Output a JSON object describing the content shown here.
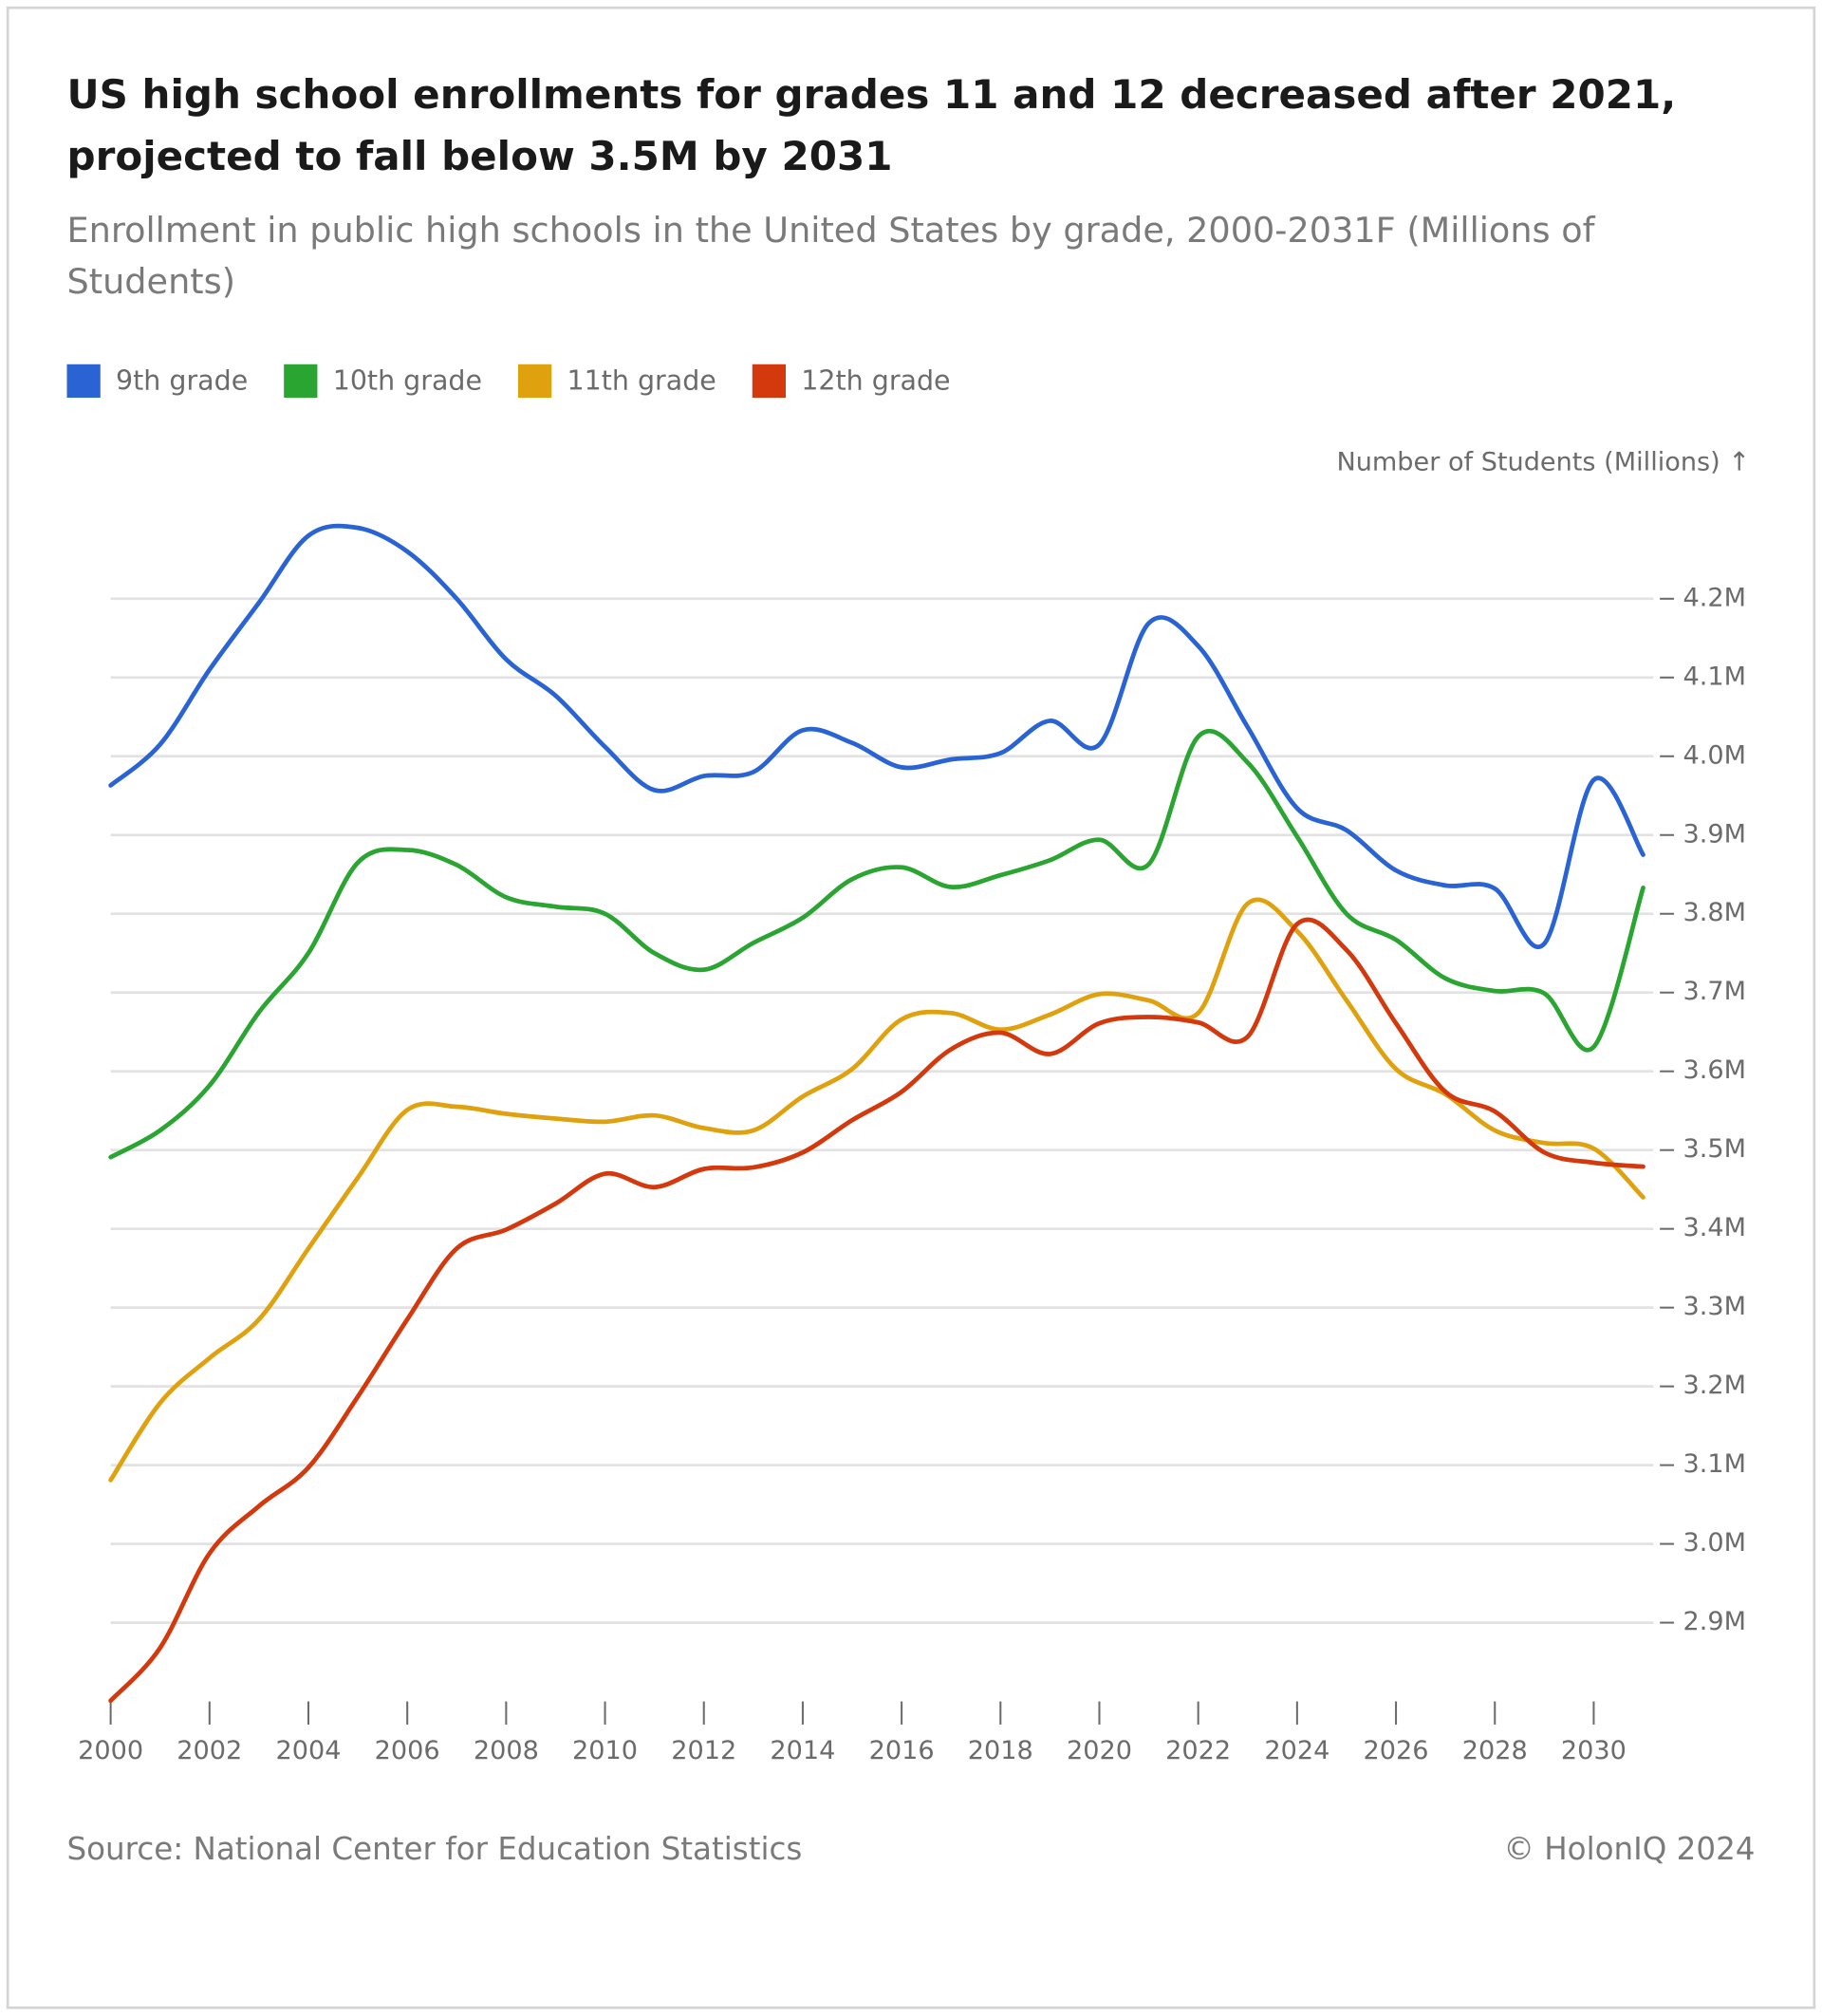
{
  "chart_data": {
    "type": "line",
    "title": "US high school enrollments for grades 11 and 12 decreased after 2021, projected to fall below 3.5M by 2031",
    "subtitle": "Enrollment in public high schools in the United States by grade, 2000-2031F (Millions of Students)",
    "y_axis_label": "Number of Students (Millions) ↑",
    "source": "Source: National Center for Education Statistics",
    "copyright": "© HolonIQ 2024",
    "x": [
      2000,
      2001,
      2002,
      2003,
      2004,
      2005,
      2006,
      2007,
      2008,
      2009,
      2010,
      2011,
      2012,
      2013,
      2014,
      2015,
      2016,
      2017,
      2018,
      2019,
      2020,
      2021,
      2022,
      2023,
      2024,
      2025,
      2026,
      2027,
      2028,
      2029,
      2030,
      2031
    ],
    "xlim": [
      2000,
      2031
    ],
    "xticks": [
      2000,
      2002,
      2004,
      2006,
      2008,
      2010,
      2012,
      2014,
      2016,
      2018,
      2020,
      2022,
      2024,
      2026,
      2028,
      2030
    ],
    "ylim": [
      2.8,
      4.3
    ],
    "yticks": [
      {
        "value": 2.9,
        "label": "2.9M"
      },
      {
        "value": 3.0,
        "label": "3.0M"
      },
      {
        "value": 3.1,
        "label": "3.1M"
      },
      {
        "value": 3.2,
        "label": "3.2M"
      },
      {
        "value": 3.3,
        "label": "3.3M"
      },
      {
        "value": 3.4,
        "label": "3.4M"
      },
      {
        "value": 3.5,
        "label": "3.5M"
      },
      {
        "value": 3.6,
        "label": "3.6M"
      },
      {
        "value": 3.7,
        "label": "3.7M"
      },
      {
        "value": 3.8,
        "label": "3.8M"
      },
      {
        "value": 3.9,
        "label": "3.9M"
      },
      {
        "value": 4.0,
        "label": "4.0M"
      },
      {
        "value": 4.1,
        "label": "4.1M"
      },
      {
        "value": 4.2,
        "label": "4.2M"
      }
    ],
    "grid": true,
    "series": [
      {
        "name": "9th grade",
        "color": "#2a63d4",
        "values": [
          3.963,
          4.015,
          4.11,
          4.195,
          4.28,
          4.29,
          4.26,
          4.2,
          4.123,
          4.077,
          4.012,
          3.957,
          3.975,
          3.98,
          4.033,
          4.017,
          3.986,
          3.996,
          4.004,
          4.045,
          4.015,
          4.169,
          4.14,
          4.037,
          3.934,
          3.906,
          3.855,
          3.836,
          3.832,
          3.762,
          3.97,
          3.875
        ]
      },
      {
        "name": "10th grade",
        "color": "#2aa532",
        "values": [
          3.491,
          3.525,
          3.582,
          3.675,
          3.75,
          3.865,
          3.881,
          3.862,
          3.821,
          3.809,
          3.8,
          3.75,
          3.729,
          3.763,
          3.795,
          3.844,
          3.859,
          3.834,
          3.849,
          3.868,
          3.894,
          3.863,
          4.025,
          3.992,
          3.898,
          3.8,
          3.767,
          3.718,
          3.702,
          3.699,
          3.631,
          3.833
        ]
      },
      {
        "name": "11th grade",
        "color": "#e0a10e",
        "values": [
          3.081,
          3.179,
          3.236,
          3.285,
          3.375,
          3.465,
          3.551,
          3.555,
          3.546,
          3.54,
          3.536,
          3.544,
          3.528,
          3.525,
          3.568,
          3.603,
          3.666,
          3.674,
          3.653,
          3.672,
          3.698,
          3.69,
          3.674,
          3.813,
          3.778,
          3.69,
          3.603,
          3.571,
          3.525,
          3.509,
          3.502,
          3.44
        ]
      },
      {
        "name": "12th grade",
        "color": "#d4380d",
        "values": [
          2.801,
          2.868,
          2.988,
          3.048,
          3.097,
          3.187,
          3.285,
          3.375,
          3.399,
          3.432,
          3.47,
          3.453,
          3.476,
          3.478,
          3.497,
          3.538,
          3.574,
          3.628,
          3.649,
          3.622,
          3.661,
          3.669,
          3.662,
          3.644,
          3.787,
          3.754,
          3.661,
          3.574,
          3.549,
          3.497,
          3.484,
          3.479
        ]
      }
    ]
  }
}
